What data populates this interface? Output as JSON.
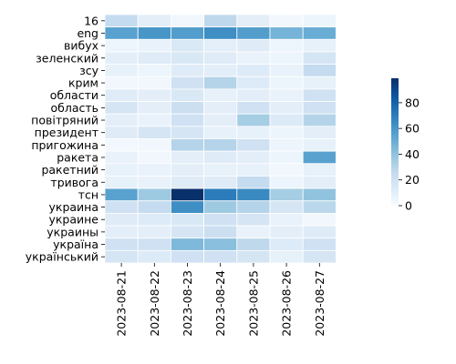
{
  "chart_data": {
    "type": "heatmap",
    "title": "",
    "xlabel": "",
    "ylabel": "",
    "x": [
      "2023-08-21",
      "2023-08-22",
      "2023-08-23",
      "2023-08-24",
      "2023-08-25",
      "2023-08-26",
      "2023-08-27"
    ],
    "y": [
      "16",
      "eng",
      "вибух",
      "зеленский",
      "зсу",
      "крим",
      "области",
      "область",
      "повітряний",
      "президент",
      "пригожина",
      "ракета",
      "ракетний",
      "тривога",
      "тсн",
      "украина",
      "украине",
      "украины",
      "україна",
      "український"
    ],
    "values": [
      [
        25,
        10,
        3,
        27,
        10,
        3,
        5
      ],
      [
        55,
        60,
        57,
        63,
        57,
        47,
        50
      ],
      [
        5,
        7,
        15,
        10,
        12,
        5,
        8
      ],
      [
        10,
        12,
        15,
        12,
        7,
        5,
        17
      ],
      [
        8,
        5,
        12,
        10,
        13,
        7,
        25
      ],
      [
        3,
        3,
        20,
        30,
        13,
        5,
        8
      ],
      [
        12,
        10,
        15,
        8,
        10,
        7,
        20
      ],
      [
        17,
        10,
        22,
        10,
        20,
        10,
        20
      ],
      [
        10,
        7,
        20,
        10,
        35,
        13,
        30
      ],
      [
        12,
        17,
        17,
        8,
        8,
        5,
        10
      ],
      [
        2,
        3,
        30,
        30,
        20,
        5,
        8
      ],
      [
        7,
        3,
        10,
        12,
        10,
        5,
        55
      ],
      [
        8,
        7,
        10,
        8,
        8,
        3,
        8
      ],
      [
        8,
        7,
        12,
        12,
        25,
        5,
        10
      ],
      [
        55,
        37,
        99,
        70,
        65,
        35,
        40
      ],
      [
        20,
        25,
        63,
        37,
        30,
        17,
        28
      ],
      [
        12,
        13,
        15,
        20,
        17,
        7,
        3
      ],
      [
        10,
        10,
        17,
        22,
        7,
        10,
        12
      ],
      [
        20,
        20,
        45,
        42,
        27,
        13,
        20
      ],
      [
        17,
        13,
        20,
        20,
        17,
        8,
        17
      ]
    ],
    "vmin": 0,
    "vmax": 99,
    "colorbar_ticks": [
      0,
      20,
      40,
      60,
      80
    ],
    "colormap": "Blues",
    "colors": {
      "low": "#f7fbff",
      "high": "#08306b",
      "cell_border": "#ffffff"
    }
  }
}
